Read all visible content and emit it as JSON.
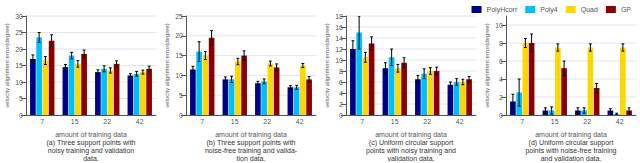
{
  "chart_data": [
    {
      "type": "bar",
      "title": "(a) Three support points with\nnoisy training and validation\ndata.",
      "categories": [
        "7",
        "15",
        "22",
        "42"
      ],
      "xlabel": "amount of training data",
      "ylabel": "velocity alignment error(degree)",
      "ylim": [
        0,
        30
      ],
      "yticks": [
        0,
        5,
        10,
        15,
        20,
        25,
        30
      ],
      "grid": true,
      "legend": "upper right",
      "series": [
        {
          "name": "PolyHcorr",
          "color": "#00008B",
          "values": [
            17.0,
            14.5,
            13.0,
            12.0
          ],
          "errors": [
            1.2,
            0.8,
            0.7,
            0.5
          ]
        },
        {
          "name": "Poly4",
          "color": "#00BFFF",
          "values": [
            23.5,
            18.0,
            14.0,
            12.5
          ],
          "errors": [
            1.5,
            1.0,
            0.9,
            0.7
          ]
        },
        {
          "name": "Quad",
          "color": "#FFD700",
          "values": [
            16.5,
            15.5,
            13.5,
            13.0
          ],
          "errors": [
            1.2,
            1.0,
            0.8,
            0.6
          ]
        },
        {
          "name": "GP",
          "color": "#8B0000",
          "values": [
            22.5,
            18.5,
            15.5,
            14.0
          ],
          "errors": [
            1.8,
            1.2,
            0.9,
            0.8
          ]
        }
      ]
    },
    {
      "type": "bar",
      "title": "(b) Three support points with\nnoise-free training and valida-\ntion data.",
      "categories": [
        "7",
        "15",
        "22",
        "42"
      ],
      "xlabel": "amount of training data",
      "ylabel": "velocity alignment error(degree)",
      "ylim": [
        0,
        25
      ],
      "yticks": [
        0,
        5,
        10,
        15,
        20,
        25
      ],
      "grid": true,
      "legend": "upper right",
      "series": [
        {
          "name": "PolyHcorr",
          "color": "#00008B",
          "values": [
            11.5,
            9.0,
            8.0,
            7.0
          ],
          "errors": [
            0.8,
            0.6,
            0.5,
            0.4
          ]
        },
        {
          "name": "Poly4",
          "color": "#00BFFF",
          "values": [
            16.0,
            9.0,
            8.5,
            7.0
          ],
          "errors": [
            2.5,
            0.8,
            0.6,
            0.5
          ]
        },
        {
          "name": "Quad",
          "color": "#FFD700",
          "values": [
            15.0,
            13.5,
            13.0,
            12.5
          ],
          "errors": [
            1.0,
            0.8,
            0.6,
            0.5
          ]
        },
        {
          "name": "GP",
          "color": "#8B0000",
          "values": [
            19.5,
            15.0,
            12.0,
            9.0
          ],
          "errors": [
            1.8,
            1.2,
            0.9,
            0.7
          ]
        }
      ]
    },
    {
      "type": "bar",
      "title": "(c) Uniform circular support\npoints with noisy training and\nvalidation data.",
      "categories": [
        "7",
        "15",
        "22",
        "42"
      ],
      "xlabel": "amount of training data",
      "ylabel": "velocity alignment error(degree)",
      "ylim": [
        0,
        18
      ],
      "yticks": [
        0,
        2,
        4,
        6,
        8,
        10,
        12,
        14,
        16,
        18
      ],
      "grid": true,
      "legend": "upper right",
      "series": [
        {
          "name": "PolyHcorr",
          "color": "#00008B",
          "values": [
            12.0,
            8.5,
            6.5,
            5.5
          ],
          "errors": [
            1.5,
            1.0,
            0.7,
            0.5
          ]
        },
        {
          "name": "Poly4",
          "color": "#00BFFF",
          "values": [
            15.0,
            10.5,
            7.5,
            6.0
          ],
          "errors": [
            3.0,
            1.5,
            0.9,
            0.6
          ]
        },
        {
          "name": "Quad",
          "color": "#FFD700",
          "values": [
            10.5,
            8.5,
            8.0,
            6.0
          ],
          "errors": [
            0.9,
            0.7,
            0.6,
            0.5
          ]
        },
        {
          "name": "GP",
          "color": "#8B0000",
          "values": [
            13.0,
            9.5,
            8.0,
            6.5
          ],
          "errors": [
            1.2,
            0.9,
            0.7,
            0.5
          ]
        }
      ]
    },
    {
      "type": "bar",
      "title": "(d) Uniform circular support\npoints with noise-free training\nand validation data.",
      "categories": [
        "7",
        "15",
        "22",
        "42"
      ],
      "xlabel": "amount of training data",
      "ylabel": "velocity alignment error(degree)",
      "ylim": [
        0,
        11
      ],
      "yticks": [
        0,
        2,
        4,
        6,
        8,
        10
      ],
      "grid": true,
      "legend": "upper right",
      "series": [
        {
          "name": "PolyHcorr",
          "color": "#00008B",
          "values": [
            1.5,
            0.5,
            0.5,
            0.5
          ],
          "errors": [
            0.8,
            0.3,
            0.3,
            0.2
          ]
        },
        {
          "name": "Poly4",
          "color": "#00BFFF",
          "values": [
            2.5,
            0.5,
            0.5,
            0.1
          ],
          "errors": [
            1.5,
            0.4,
            0.3,
            0.1
          ]
        },
        {
          "name": "Quad",
          "color": "#FFD700",
          "values": [
            8.0,
            7.5,
            7.5,
            7.5
          ],
          "errors": [
            0.5,
            0.4,
            0.4,
            0.4
          ]
        },
        {
          "name": "GP",
          "color": "#8B0000",
          "values": [
            8.0,
            5.2,
            3.0,
            0.5
          ],
          "errors": [
            1.0,
            0.8,
            0.5,
            0.3
          ]
        }
      ]
    }
  ]
}
